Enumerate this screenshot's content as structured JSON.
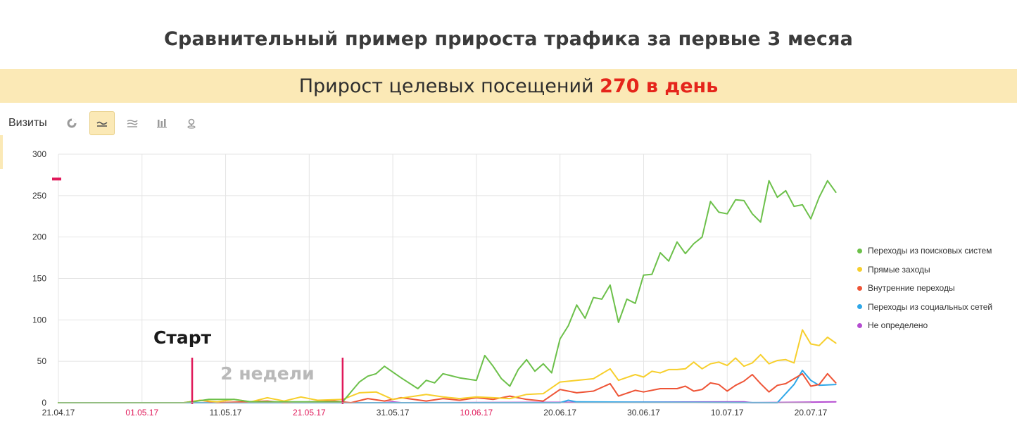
{
  "title": "Сравнительный пример прироста трафика за первые 3 месяа",
  "banner": {
    "text": "Прирост целевых посещений ",
    "highlight": "270 в день"
  },
  "toolbar": {
    "label": "Визиты",
    "buttons": [
      "pie-chart-icon",
      "line-chart-icon",
      "area-chart-icon",
      "bar-chart-icon",
      "map-icon"
    ],
    "active": 1
  },
  "colors": {
    "search": "#6cc04a",
    "direct": "#f7cf2c",
    "internal": "#ee5436",
    "social": "#2ea7e8",
    "undefined": "#b54cd1",
    "annotation": "#e0195a",
    "weekend": "#e0195a",
    "highlight": "#e5251b",
    "banner_bg": "#fbe9b6"
  },
  "chart_data": {
    "type": "line",
    "ylim": [
      0,
      300
    ],
    "yticks": [
      0,
      50,
      100,
      150,
      200,
      250,
      300
    ],
    "xlim": [
      "2017-04-21",
      "2017-07-20"
    ],
    "xticks": [
      {
        "date": "2017-04-21",
        "label": "21.04.17",
        "weekend": false
      },
      {
        "date": "2017-05-01",
        "label": "01.05.17",
        "weekend": true
      },
      {
        "date": "2017-05-11",
        "label": "11.05.17",
        "weekend": false
      },
      {
        "date": "2017-05-21",
        "label": "21.05.17",
        "weekend": true
      },
      {
        "date": "2017-05-31",
        "label": "31.05.17",
        "weekend": false
      },
      {
        "date": "2017-06-10",
        "label": "10.06.17",
        "weekend": true
      },
      {
        "date": "2017-06-20",
        "label": "20.06.17",
        "weekend": false
      },
      {
        "date": "2017-06-30",
        "label": "30.06.17",
        "weekend": false
      },
      {
        "date": "2017-07-10",
        "label": "10.07.17",
        "weekend": false
      },
      {
        "date": "2017-07-20",
        "label": "20.07.17",
        "weekend": false
      }
    ],
    "annotations": {
      "start": {
        "label": "Старт",
        "date": "2017-05-07"
      },
      "two_weeks": {
        "label": "2 недели",
        "date": "2017-05-25"
      }
    },
    "series": [
      {
        "name": "Переходы из поисковых систем",
        "color_key": "search",
        "points": [
          [
            "2017-04-21",
            0
          ],
          [
            "2017-05-06",
            0
          ],
          [
            "2017-05-07",
            1
          ],
          [
            "2017-05-09",
            4
          ],
          [
            "2017-05-12",
            4
          ],
          [
            "2017-05-14",
            1
          ],
          [
            "2017-05-25",
            1
          ],
          [
            "2017-05-27",
            25
          ],
          [
            "2017-05-28",
            32
          ],
          [
            "2017-05-29",
            35
          ],
          [
            "2017-05-30",
            44
          ],
          [
            "2017-06-01",
            30
          ],
          [
            "2017-06-03",
            17
          ],
          [
            "2017-06-04",
            27
          ],
          [
            "2017-06-05",
            24
          ],
          [
            "2017-06-06",
            35
          ],
          [
            "2017-06-08",
            30
          ],
          [
            "2017-06-10",
            27
          ],
          [
            "2017-06-11",
            57
          ],
          [
            "2017-06-12",
            44
          ],
          [
            "2017-06-13",
            29
          ],
          [
            "2017-06-14",
            20
          ],
          [
            "2017-06-15",
            40
          ],
          [
            "2017-06-16",
            52
          ],
          [
            "2017-06-17",
            38
          ],
          [
            "2017-06-18",
            47
          ],
          [
            "2017-06-19",
            36
          ],
          [
            "2017-06-20",
            77
          ],
          [
            "2017-06-21",
            93
          ],
          [
            "2017-06-22",
            118
          ],
          [
            "2017-06-23",
            102
          ],
          [
            "2017-06-24",
            127
          ],
          [
            "2017-06-25",
            125
          ],
          [
            "2017-06-26",
            142
          ],
          [
            "2017-06-27",
            97
          ],
          [
            "2017-06-28",
            125
          ],
          [
            "2017-06-29",
            120
          ],
          [
            "2017-06-30",
            154
          ],
          [
            "2017-07-01",
            155
          ],
          [
            "2017-07-02",
            181
          ],
          [
            "2017-07-03",
            171
          ],
          [
            "2017-07-04",
            194
          ],
          [
            "2017-07-05",
            180
          ],
          [
            "2017-07-06",
            192
          ],
          [
            "2017-07-07",
            200
          ],
          [
            "2017-07-08",
            243
          ],
          [
            "2017-07-09",
            230
          ],
          [
            "2017-07-10",
            228
          ],
          [
            "2017-07-11",
            245
          ],
          [
            "2017-07-12",
            244
          ],
          [
            "2017-07-13",
            228
          ],
          [
            "2017-07-14",
            218
          ],
          [
            "2017-07-15",
            268
          ],
          [
            "2017-07-16",
            248
          ],
          [
            "2017-07-17",
            256
          ],
          [
            "2017-07-18",
            237
          ],
          [
            "2017-07-19",
            239
          ],
          [
            "2017-07-20",
            222
          ],
          [
            "2017-07-21",
            248
          ],
          [
            "2017-07-22",
            268
          ],
          [
            "2017-07-23",
            254
          ]
        ]
      },
      {
        "name": "Прямые заходы",
        "color_key": "direct",
        "points": [
          [
            "2017-04-21",
            0
          ],
          [
            "2017-05-06",
            0
          ],
          [
            "2017-05-08",
            3
          ],
          [
            "2017-05-10",
            1
          ],
          [
            "2017-05-12",
            4
          ],
          [
            "2017-05-14",
            1
          ],
          [
            "2017-05-16",
            6
          ],
          [
            "2017-05-18",
            2
          ],
          [
            "2017-05-20",
            7
          ],
          [
            "2017-05-22",
            3
          ],
          [
            "2017-05-25",
            4
          ],
          [
            "2017-05-27",
            12
          ],
          [
            "2017-05-29",
            13
          ],
          [
            "2017-05-31",
            4
          ],
          [
            "2017-06-02",
            7
          ],
          [
            "2017-06-04",
            10
          ],
          [
            "2017-06-06",
            7
          ],
          [
            "2017-06-08",
            5
          ],
          [
            "2017-06-10",
            7
          ],
          [
            "2017-06-12",
            6
          ],
          [
            "2017-06-14",
            5
          ],
          [
            "2017-06-16",
            10
          ],
          [
            "2017-06-18",
            11
          ],
          [
            "2017-06-20",
            25
          ],
          [
            "2017-06-22",
            27
          ],
          [
            "2017-06-24",
            29
          ],
          [
            "2017-06-26",
            41
          ],
          [
            "2017-06-27",
            27
          ],
          [
            "2017-06-29",
            34
          ],
          [
            "2017-06-30",
            31
          ],
          [
            "2017-07-01",
            38
          ],
          [
            "2017-07-02",
            36
          ],
          [
            "2017-07-03",
            40
          ],
          [
            "2017-07-04",
            40
          ],
          [
            "2017-07-05",
            41
          ],
          [
            "2017-07-06",
            49
          ],
          [
            "2017-07-07",
            41
          ],
          [
            "2017-07-08",
            47
          ],
          [
            "2017-07-09",
            49
          ],
          [
            "2017-07-10",
            45
          ],
          [
            "2017-07-11",
            54
          ],
          [
            "2017-07-12",
            44
          ],
          [
            "2017-07-13",
            48
          ],
          [
            "2017-07-14",
            58
          ],
          [
            "2017-07-15",
            47
          ],
          [
            "2017-07-16",
            51
          ],
          [
            "2017-07-17",
            52
          ],
          [
            "2017-07-18",
            48
          ],
          [
            "2017-07-19",
            88
          ],
          [
            "2017-07-20",
            71
          ],
          [
            "2017-07-21",
            69
          ],
          [
            "2017-07-22",
            79
          ],
          [
            "2017-07-23",
            72
          ]
        ]
      },
      {
        "name": "Внутренние переходы",
        "color_key": "internal",
        "points": [
          [
            "2017-04-21",
            0
          ],
          [
            "2017-05-06",
            0
          ],
          [
            "2017-05-08",
            3
          ],
          [
            "2017-05-10",
            0
          ],
          [
            "2017-05-16",
            2
          ],
          [
            "2017-05-18",
            0
          ],
          [
            "2017-05-24",
            2
          ],
          [
            "2017-05-26",
            0
          ],
          [
            "2017-05-28",
            5
          ],
          [
            "2017-05-30",
            2
          ],
          [
            "2017-06-01",
            6
          ],
          [
            "2017-06-04",
            2
          ],
          [
            "2017-06-06",
            5
          ],
          [
            "2017-06-08",
            3
          ],
          [
            "2017-06-10",
            6
          ],
          [
            "2017-06-12",
            4
          ],
          [
            "2017-06-14",
            8
          ],
          [
            "2017-06-16",
            4
          ],
          [
            "2017-06-18",
            2
          ],
          [
            "2017-06-20",
            16
          ],
          [
            "2017-06-22",
            12
          ],
          [
            "2017-06-24",
            14
          ],
          [
            "2017-06-26",
            23
          ],
          [
            "2017-06-27",
            8
          ],
          [
            "2017-06-29",
            15
          ],
          [
            "2017-06-30",
            13
          ],
          [
            "2017-07-02",
            17
          ],
          [
            "2017-07-04",
            17
          ],
          [
            "2017-07-05",
            20
          ],
          [
            "2017-07-06",
            14
          ],
          [
            "2017-07-07",
            16
          ],
          [
            "2017-07-08",
            24
          ],
          [
            "2017-07-09",
            22
          ],
          [
            "2017-07-10",
            14
          ],
          [
            "2017-07-11",
            21
          ],
          [
            "2017-07-12",
            26
          ],
          [
            "2017-07-13",
            34
          ],
          [
            "2017-07-14",
            23
          ],
          [
            "2017-07-15",
            13
          ],
          [
            "2017-07-16",
            21
          ],
          [
            "2017-07-17",
            23
          ],
          [
            "2017-07-18",
            29
          ],
          [
            "2017-07-19",
            35
          ],
          [
            "2017-07-20",
            20
          ],
          [
            "2017-07-21",
            22
          ],
          [
            "2017-07-22",
            35
          ],
          [
            "2017-07-23",
            24
          ]
        ]
      },
      {
        "name": "Переходы из социальных сетей",
        "color_key": "social",
        "points": [
          [
            "2017-04-21",
            0
          ],
          [
            "2017-06-20",
            0
          ],
          [
            "2017-06-21",
            3
          ],
          [
            "2017-06-22",
            1
          ],
          [
            "2017-07-16",
            0
          ],
          [
            "2017-07-18",
            22
          ],
          [
            "2017-07-19",
            39
          ],
          [
            "2017-07-20",
            27
          ],
          [
            "2017-07-21",
            21
          ],
          [
            "2017-07-23",
            22
          ]
        ]
      },
      {
        "name": "Не определено",
        "color_key": "undefined",
        "points": [
          [
            "2017-04-21",
            0
          ],
          [
            "2017-05-30",
            0
          ],
          [
            "2017-05-31",
            1
          ],
          [
            "2017-06-01",
            0
          ],
          [
            "2017-07-12",
            1
          ],
          [
            "2017-07-13",
            0
          ],
          [
            "2017-07-23",
            1
          ]
        ]
      }
    ]
  }
}
